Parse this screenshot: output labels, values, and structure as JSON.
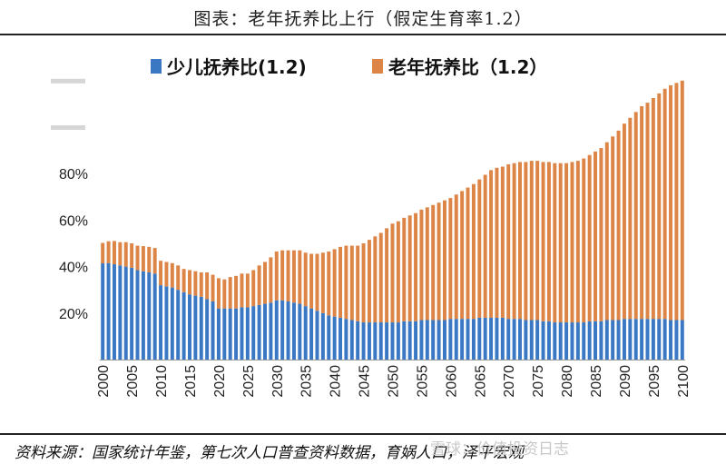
{
  "title": "图表：老年抚养比上行（假定生育率1.2）",
  "source": "资料来源：国家统计年鉴，第七次人口普查资料数据，育娲人口，泽平宏观",
  "watermark": "雪球：价值投资日志",
  "colors": {
    "youth": "#3a78c4",
    "elderly": "#dd8547",
    "background": "#ffffff"
  },
  "chart_data": {
    "type": "bar",
    "stacked": true,
    "categories": [
      "2000",
      "2001",
      "2002",
      "2003",
      "2004",
      "2005",
      "2006",
      "2007",
      "2008",
      "2009",
      "2010",
      "2011",
      "2012",
      "2013",
      "2014",
      "2015",
      "2016",
      "2017",
      "2018",
      "2019",
      "2020",
      "2021",
      "2022",
      "2023",
      "2024",
      "2025",
      "2026",
      "2027",
      "2028",
      "2029",
      "2030",
      "2031",
      "2032",
      "2033",
      "2034",
      "2035",
      "2036",
      "2037",
      "2038",
      "2039",
      "2040",
      "2041",
      "2042",
      "2043",
      "2044",
      "2045",
      "2046",
      "2047",
      "2048",
      "2049",
      "2050",
      "2051",
      "2052",
      "2053",
      "2054",
      "2055",
      "2056",
      "2057",
      "2058",
      "2059",
      "2060",
      "2061",
      "2062",
      "2063",
      "2064",
      "2065",
      "2066",
      "2067",
      "2068",
      "2069",
      "2070",
      "2071",
      "2072",
      "2073",
      "2074",
      "2075",
      "2076",
      "2077",
      "2078",
      "2079",
      "2080",
      "2081",
      "2082",
      "2083",
      "2084",
      "2085",
      "2086",
      "2087",
      "2088",
      "2089",
      "2090",
      "2091",
      "2092",
      "2093",
      "2094",
      "2095",
      "2096",
      "2097",
      "2098",
      "2099",
      "2100"
    ],
    "x_tick_labels": [
      "2000",
      "2005",
      "2010",
      "2015",
      "2020",
      "2025",
      "2030",
      "2035",
      "2040",
      "2045",
      "2050",
      "2055",
      "2060",
      "2065",
      "2070",
      "2075",
      "2080",
      "2085",
      "2090",
      "2095",
      "2100"
    ],
    "series": [
      {
        "name": "少儿抚养比(1.2)",
        "color": "#3a78c4",
        "values": [
          41.4,
          41.5,
          41.0,
          40.5,
          40.0,
          39.5,
          38.5,
          38.0,
          37.5,
          37.0,
          32.0,
          31.5,
          31.0,
          30.0,
          29.0,
          28.0,
          27.5,
          27.0,
          26.0,
          25.0,
          22.0,
          22.0,
          22.0,
          22.0,
          22.5,
          22.5,
          23.0,
          23.5,
          24.0,
          24.5,
          25.5,
          25.5,
          25.0,
          24.5,
          24.0,
          23.0,
          22.0,
          21.0,
          20.0,
          19.0,
          18.5,
          18.0,
          17.5,
          17.0,
          16.5,
          16.0,
          16.0,
          16.0,
          16.0,
          16.0,
          16.0,
          16.0,
          16.5,
          16.5,
          16.5,
          17.0,
          17.0,
          17.0,
          17.0,
          17.0,
          17.5,
          17.5,
          17.5,
          17.5,
          17.5,
          18.0,
          18.0,
          18.0,
          18.0,
          18.0,
          17.5,
          17.5,
          17.5,
          17.0,
          17.0,
          17.0,
          16.5,
          16.5,
          16.0,
          16.0,
          16.0,
          16.0,
          16.0,
          16.0,
          16.5,
          16.5,
          16.5,
          17.0,
          17.0,
          17.0,
          17.5,
          17.5,
          17.5,
          17.5,
          17.5,
          17.5,
          17.5,
          17.5,
          17.0,
          17.0,
          17.0
        ]
      },
      {
        "name": "老年抚养比（1.2）",
        "color": "#dd8547",
        "values": [
          8.8,
          9.4,
          10.0,
          10.0,
          10.5,
          10.5,
          10.5,
          10.8,
          11.0,
          11.0,
          10.5,
          10.5,
          10.5,
          10.5,
          10.0,
          10.5,
          10.5,
          10.5,
          11.5,
          11.5,
          13.0,
          12.5,
          13.5,
          14.0,
          14.5,
          14.5,
          15.5,
          17.0,
          18.0,
          19.5,
          21.0,
          21.5,
          22.0,
          22.5,
          23.0,
          23.0,
          23.5,
          24.5,
          26.0,
          27.5,
          29.0,
          30.5,
          31.5,
          32.0,
          32.5,
          34.0,
          35.5,
          37.0,
          38.5,
          40.5,
          42.5,
          43.5,
          44.5,
          45.5,
          46.5,
          47.5,
          48.5,
          49.5,
          50.5,
          51.5,
          52.0,
          53.5,
          55.0,
          56.5,
          58.0,
          59.5,
          61.5,
          63.5,
          64.5,
          65.0,
          66.5,
          67.0,
          67.5,
          68.0,
          68.5,
          68.5,
          68.5,
          68.5,
          68.5,
          68.5,
          68.5,
          69.0,
          69.5,
          70.5,
          71.5,
          73.0,
          74.5,
          76.5,
          79.0,
          81.5,
          84.0,
          86.5,
          89.0,
          91.5,
          93.0,
          95.0,
          97.0,
          99.0,
          101.0,
          102.0,
          103.0
        ]
      }
    ],
    "y_tick_labels": [
      "20%",
      "40%",
      "60%",
      "80%"
    ],
    "ylim": [
      0,
      125
    ],
    "legend_position": "top"
  }
}
